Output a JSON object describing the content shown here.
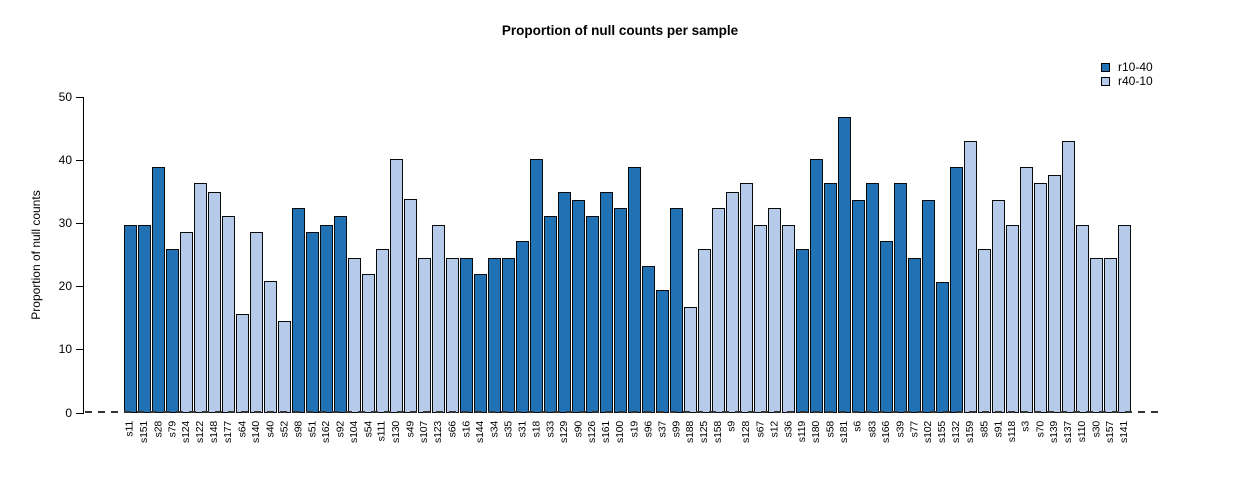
{
  "chart_data": {
    "type": "bar",
    "title": "Proportion of null counts per sample",
    "xlabel": "",
    "ylabel": "Proportion of null counts",
    "ylim": [
      0,
      50
    ],
    "yticks": [
      0,
      10,
      20,
      30,
      40,
      50
    ],
    "grid": false,
    "baseline_style": "dashed",
    "legend": {
      "position": "top-right",
      "entries": [
        {
          "label": "r10-40",
          "color": "#2171B5"
        },
        {
          "label": "r40-10",
          "color": "#B6CBE9"
        }
      ]
    },
    "bar_border_color": "#0a0a0a",
    "categories": [
      "s11",
      "s151",
      "s28",
      "s79",
      "s124",
      "s122",
      "s148",
      "s177",
      "s64",
      "s140",
      "s40",
      "s52",
      "s98",
      "s51",
      "s162",
      "s92",
      "s104",
      "s54",
      "s111",
      "s130",
      "s49",
      "s107",
      "s123",
      "s66",
      "s16",
      "s144",
      "s34",
      "s35",
      "s31",
      "s18",
      "s33",
      "s129",
      "s90",
      "s126",
      "s161",
      "s100",
      "s19",
      "s96",
      "s37",
      "s99",
      "s188",
      "s125",
      "s158",
      "s9",
      "s128",
      "s67",
      "s12",
      "s36",
      "s119",
      "s180",
      "s58",
      "s181",
      "s6",
      "s83",
      "s166",
      "s39",
      "s77",
      "s102",
      "s155",
      "s132",
      "s159",
      "s85",
      "s91",
      "s118",
      "s3",
      "s70",
      "s139",
      "s137",
      "s110",
      "s30",
      "s157",
      "s141"
    ],
    "groups": [
      "r10-40",
      "r10-40",
      "r10-40",
      "r10-40",
      "r40-10",
      "r40-10",
      "r40-10",
      "r40-10",
      "r40-10",
      "r40-10",
      "r40-10",
      "r40-10",
      "r10-40",
      "r10-40",
      "r10-40",
      "r10-40",
      "r40-10",
      "r40-10",
      "r40-10",
      "r40-10",
      "r40-10",
      "r40-10",
      "r40-10",
      "r40-10",
      "r10-40",
      "r10-40",
      "r10-40",
      "r10-40",
      "r10-40",
      "r10-40",
      "r10-40",
      "r10-40",
      "r10-40",
      "r10-40",
      "r10-40",
      "r10-40",
      "r10-40",
      "r10-40",
      "r10-40",
      "r10-40",
      "r40-10",
      "r40-10",
      "r40-10",
      "r40-10",
      "r40-10",
      "r40-10",
      "r40-10",
      "r40-10",
      "r10-40",
      "r10-40",
      "r10-40",
      "r10-40",
      "r10-40",
      "r10-40",
      "r10-40",
      "r10-40",
      "r10-40",
      "r10-40",
      "r10-40",
      "r10-40",
      "r40-10",
      "r40-10",
      "r40-10",
      "r40-10",
      "r40-10",
      "r40-10",
      "r40-10",
      "r40-10",
      "r40-10",
      "r40-10",
      "r40-10",
      "r40-10"
    ],
    "values": [
      29.8,
      29.8,
      39.0,
      26.0,
      28.6,
      36.4,
      35.0,
      31.2,
      15.6,
      28.6,
      20.9,
      14.5,
      32.5,
      28.6,
      29.8,
      31.2,
      24.6,
      22.0,
      26.0,
      40.2,
      33.8,
      24.6,
      29.8,
      24.6,
      24.6,
      22.0,
      24.6,
      24.6,
      27.3,
      40.2,
      31.2,
      35.0,
      33.7,
      31.2,
      35.0,
      32.5,
      39.0,
      23.3,
      19.5,
      32.5,
      16.8,
      26.0,
      32.5,
      35.0,
      36.4,
      29.8,
      32.5,
      29.8,
      26.0,
      40.2,
      36.4,
      46.8,
      33.7,
      36.4,
      27.3,
      36.4,
      24.6,
      33.7,
      20.8,
      39.0,
      43.0,
      26.0,
      33.7,
      29.8,
      39.0,
      36.4,
      37.7,
      43.0,
      29.8,
      24.6,
      24.6,
      29.8
    ]
  },
  "colors": {
    "background": "#FFFFFF",
    "axis": "#000000",
    "baseline": "#333333",
    "series_dark": "#2171B5",
    "series_light": "#B6CBE9"
  }
}
